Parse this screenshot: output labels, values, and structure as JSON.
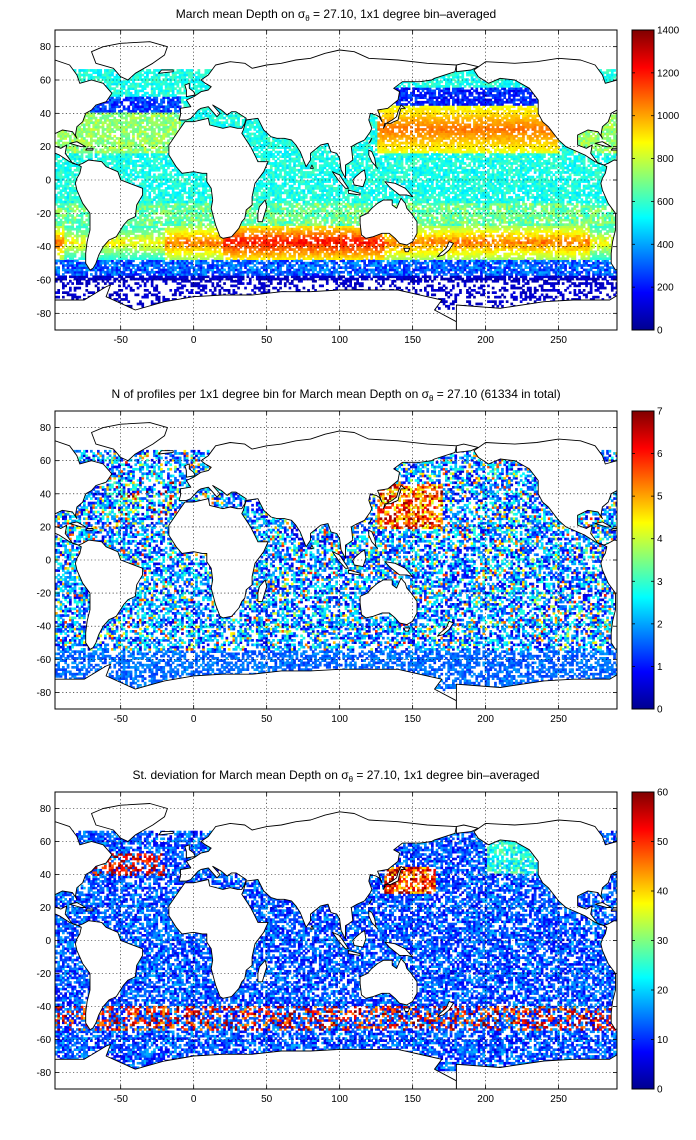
{
  "chart_data": [
    {
      "type": "heatmap",
      "title_parts": [
        "March mean Depth on ",
        "σ",
        "θ",
        " = 27.10, 1x1 degree bin–averaged"
      ],
      "x_ticks": [
        "-50",
        "0",
        "50",
        "100",
        "150",
        "200",
        "250"
      ],
      "y_ticks": [
        "80",
        "60",
        "40",
        "20",
        "0",
        "-20",
        "-40",
        "-60",
        "-80"
      ],
      "xlim": [
        -95,
        290
      ],
      "ylim": [
        -90,
        90
      ],
      "colorbar": {
        "min": 0,
        "max": 1400,
        "ticks": [
          "0",
          "200",
          "400",
          "600",
          "800",
          "1000",
          "1200",
          "1400"
        ]
      },
      "colormap": "jet",
      "grid": true,
      "pattern": "depth"
    },
    {
      "type": "heatmap",
      "title_parts": [
        "N of profiles per 1x1 degree bin for March mean Depth on ",
        "σ",
        "θ",
        " = 27.10 (61334 in total)"
      ],
      "x_ticks": [
        "-50",
        "0",
        "50",
        "100",
        "150",
        "200",
        "250"
      ],
      "y_ticks": [
        "80",
        "60",
        "40",
        "20",
        "0",
        "-20",
        "-40",
        "-60",
        "-80"
      ],
      "xlim": [
        -95,
        290
      ],
      "ylim": [
        -90,
        90
      ],
      "colorbar": {
        "min": 0,
        "max": 7,
        "ticks": [
          "0",
          "1",
          "2",
          "3",
          "4",
          "5",
          "6",
          "7"
        ]
      },
      "colormap": "jet",
      "grid": true,
      "pattern": "count"
    },
    {
      "type": "heatmap",
      "title_parts": [
        "St. deviation for March mean Depth on ",
        "σ",
        "θ",
        " = 27.10, 1x1 degree bin–averaged"
      ],
      "x_ticks": [
        "-50",
        "0",
        "50",
        "100",
        "150",
        "200",
        "250"
      ],
      "y_ticks": [
        "80",
        "60",
        "40",
        "20",
        "0",
        "-20",
        "-40",
        "-60",
        "-80"
      ],
      "xlim": [
        -95,
        290
      ],
      "ylim": [
        -90,
        90
      ],
      "colorbar": {
        "min": 0,
        "max": 60,
        "ticks": [
          "0",
          "10",
          "20",
          "30",
          "40",
          "50",
          "60"
        ]
      },
      "colormap": "jet",
      "grid": true,
      "pattern": "std"
    }
  ]
}
